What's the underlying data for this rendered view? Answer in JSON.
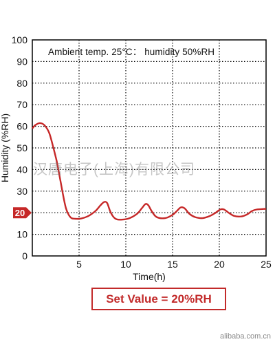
{
  "annotation": "Ambient temp. 25°C： humidity 50%RH",
  "set_value_label": "Set Value = 20%RH",
  "watermark": "汉唐电子(上海)有限公司",
  "footer": "alibaba.com.cn",
  "colors": {
    "curve": "#c62828",
    "marker": "#c62828",
    "grid": "#000000",
    "box": "#c22a2a"
  },
  "chart_data": {
    "type": "line",
    "xlabel": "Time(h)",
    "ylabel": "Humidity (%RH)",
    "xlim": [
      0,
      25
    ],
    "ylim": [
      0,
      100
    ],
    "xticks": [
      5,
      10,
      15,
      20,
      25
    ],
    "yticks": [
      0,
      10,
      20,
      30,
      40,
      50,
      60,
      70,
      80,
      90,
      100
    ],
    "grid": true,
    "grid_style": "dotted",
    "setpoint": 20,
    "setpoint_label": "20",
    "series": [
      {
        "x": [
          0,
          0.3,
          0.8,
          1.3,
          1.8,
          2.2,
          2.6,
          3.0,
          3.3,
          3.6,
          3.9,
          4.2,
          4.6,
          5.2,
          6.0,
          6.8,
          7.3,
          7.7,
          8.0,
          8.3,
          8.6,
          9.0,
          9.6,
          10.4,
          11.2,
          11.7,
          12.1,
          12.4,
          12.8,
          13.3,
          14.2,
          15.0,
          15.5,
          15.9,
          16.3,
          16.8,
          17.4,
          18.2,
          19.0,
          19.6,
          20.1,
          20.5,
          21.0,
          21.6,
          22.4,
          23.0,
          23.5,
          24.0,
          25.0
        ],
        "y": [
          59,
          60.5,
          61.5,
          60.5,
          57,
          51,
          44,
          35,
          28,
          22,
          19,
          17.5,
          17.2,
          17.3,
          18.5,
          21,
          23.5,
          25,
          24.5,
          21,
          18.5,
          17,
          16.8,
          17.5,
          19.5,
          22,
          24,
          23.5,
          20.5,
          18,
          17.5,
          19,
          21,
          22.5,
          22,
          19.5,
          18,
          17.5,
          18.5,
          20,
          21.5,
          21.5,
          20,
          18.5,
          18.3,
          19.3,
          20.8,
          21.5,
          21.8
        ]
      }
    ]
  }
}
